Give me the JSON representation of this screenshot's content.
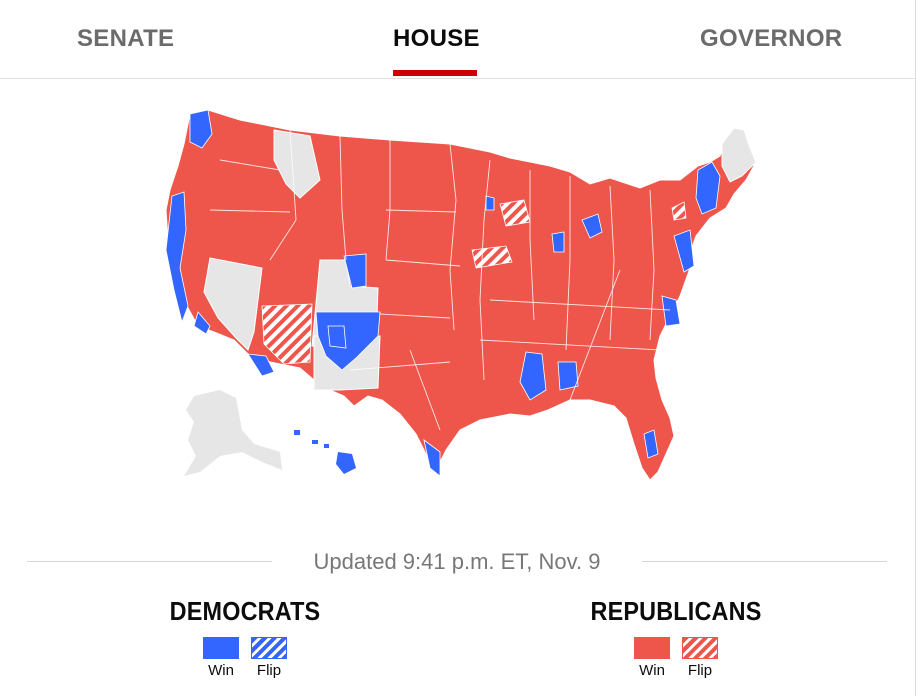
{
  "tabs": [
    {
      "label": "SENATE",
      "active": false
    },
    {
      "label": "HOUSE",
      "active": true
    },
    {
      "label": "GOVERNOR",
      "active": false
    }
  ],
  "active_tab": "HOUSE",
  "updated": "Updated 9:41 p.m. ET, Nov. 9",
  "legend": {
    "democrats": {
      "title": "DEMOCRATS",
      "win_label": "Win",
      "flip_label": "Flip",
      "color": "#3366ff"
    },
    "republicans": {
      "title": "REPUBLICANS",
      "win_label": "Win",
      "flip_label": "Flip",
      "color": "#ee564b"
    }
  },
  "map": {
    "no_result_color": "#e6e6e6",
    "district_border_color": "#ffffff"
  }
}
